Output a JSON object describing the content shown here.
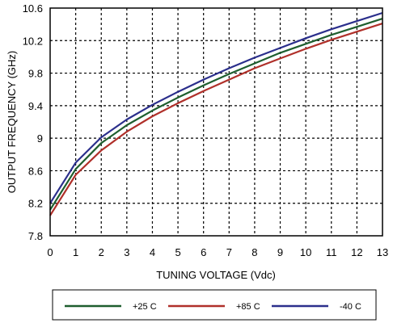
{
  "chart_data": {
    "type": "line",
    "xlabel": "TUNING VOLTAGE (Vdc)",
    "ylabel": "OUTPUT FREQUENCY (GHz)",
    "xlim": [
      0,
      13
    ],
    "ylim": [
      7.8,
      10.6
    ],
    "x_ticks": [
      0,
      1,
      2,
      3,
      4,
      5,
      6,
      7,
      8,
      9,
      10,
      11,
      12,
      13
    ],
    "y_ticks": [
      7.8,
      8.2,
      8.6,
      9,
      9.4,
      9.8,
      10.2,
      10.6
    ],
    "y_tick_labels": [
      "7.8",
      "8.2",
      "8.6",
      "9",
      "9.4",
      "9.8",
      "10.2",
      "10.6"
    ],
    "grid": true,
    "legend_position": "bottom",
    "x": [
      0,
      1,
      2,
      3,
      4,
      5,
      6,
      7,
      8,
      9,
      10,
      11,
      12,
      13
    ],
    "series": [
      {
        "name": "+25 C",
        "color": "#1e5e2e",
        "values": [
          8.12,
          8.62,
          8.94,
          9.16,
          9.34,
          9.5,
          9.65,
          9.79,
          9.92,
          10.05,
          10.16,
          10.27,
          10.37,
          10.47
        ]
      },
      {
        "name": "+85 C",
        "color": "#b0302a",
        "values": [
          8.05,
          8.55,
          8.85,
          9.08,
          9.27,
          9.43,
          9.58,
          9.72,
          9.86,
          9.98,
          10.1,
          10.21,
          10.31,
          10.41
        ]
      },
      {
        "name": "-40 C",
        "color": "#2b2f8c",
        "values": [
          8.2,
          8.7,
          9.01,
          9.23,
          9.41,
          9.57,
          9.72,
          9.86,
          9.99,
          10.11,
          10.23,
          10.34,
          10.44,
          10.54
        ]
      }
    ]
  }
}
